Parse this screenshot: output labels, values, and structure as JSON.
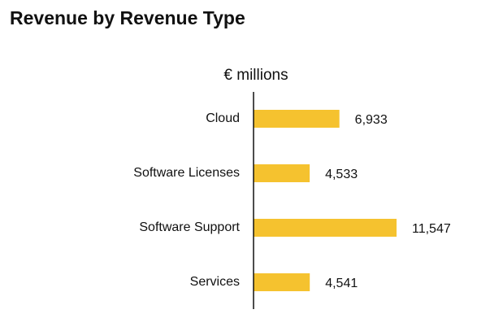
{
  "chart_data": {
    "type": "bar",
    "orientation": "horizontal",
    "title": "Revenue by Revenue Type",
    "subtitle": "€ millions",
    "categories": [
      "Cloud",
      "Software Licenses",
      "Software Support",
      "Services"
    ],
    "values": [
      6933,
      4533,
      11547,
      4541
    ],
    "value_labels": [
      "6,933",
      "4,533",
      "11,547",
      "4,541"
    ],
    "color": "#f5c22f"
  }
}
